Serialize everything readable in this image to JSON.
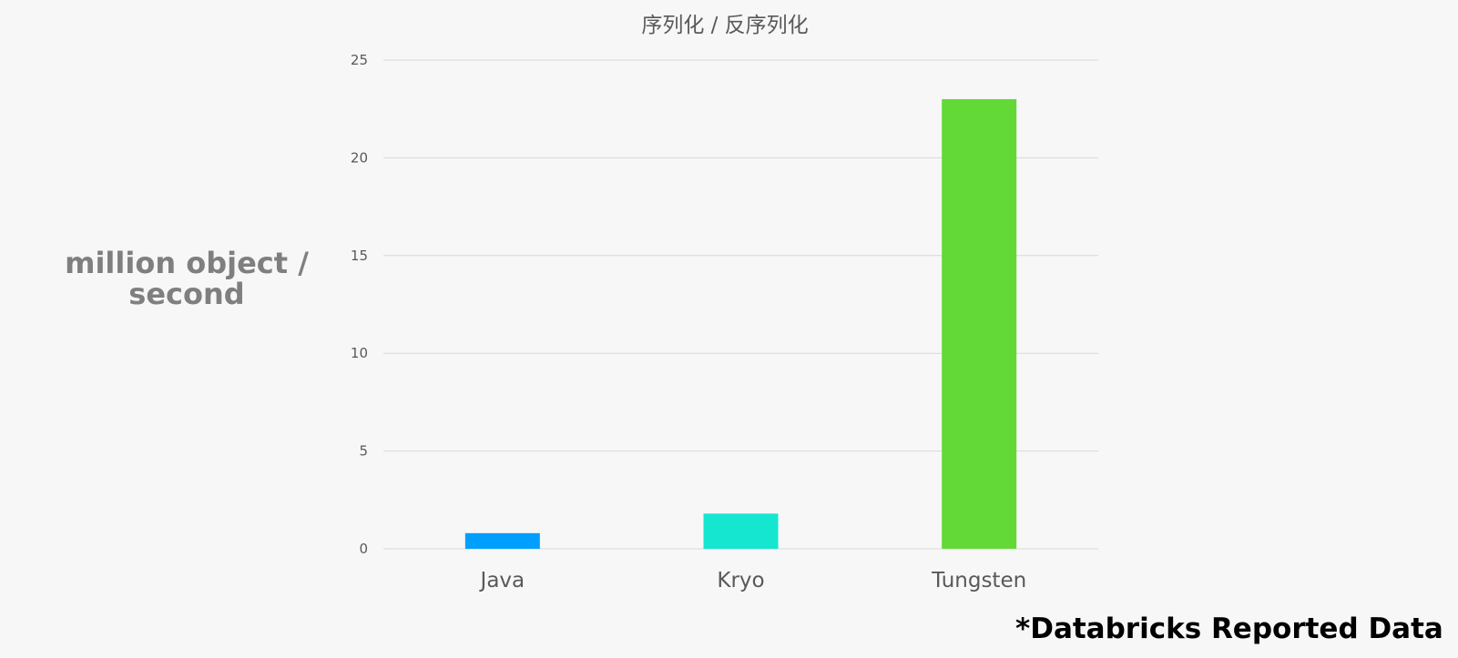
{
  "chart_data": {
    "type": "bar",
    "title": "序列化 / 反序列化",
    "ylabel": "million object / second",
    "xlabel": "",
    "categories": [
      "Java",
      "Kryo",
      "Tungsten"
    ],
    "values": [
      0.8,
      1.8,
      23
    ],
    "colors": [
      "#009ffd",
      "#15e6cf",
      "#62d937"
    ],
    "ylim": [
      0,
      25
    ],
    "yticks": [
      0,
      5,
      10,
      15,
      20,
      25
    ],
    "grid": true,
    "legend": "none"
  },
  "footnote": "*Databricks Reported Data"
}
